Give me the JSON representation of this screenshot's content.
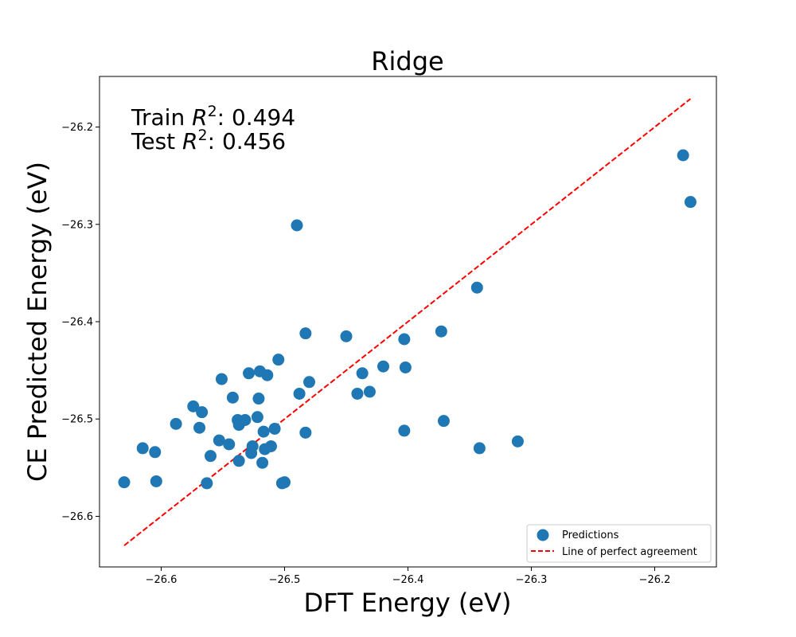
{
  "chart_data": {
    "type": "scatter",
    "title": "Ridge",
    "xlabel": "DFT Energy (eV)",
    "ylabel": "CE Predicted Energy (eV)",
    "xlim": [
      -26.65,
      -26.15
    ],
    "ylim": [
      -26.652,
      -26.148
    ],
    "xticks": [
      -26.6,
      -26.5,
      -26.4,
      -26.3,
      -26.2
    ],
    "xtick_labels": [
      "−26.6",
      "−26.5",
      "−26.4",
      "−26.3",
      "−26.2"
    ],
    "yticks": [
      -26.6,
      -26.5,
      -26.4,
      -26.3,
      -26.2
    ],
    "ytick_labels": [
      "−26.6",
      "−26.5",
      "−26.4",
      "−26.3",
      "−26.2"
    ],
    "grid": false,
    "legend_position": "lower-right",
    "annotations": [
      {
        "prefix": "Train ",
        "var": "R",
        "sup": "2",
        "value": ": 0.494"
      },
      {
        "prefix": "Test ",
        "var": "R",
        "sup": "2",
        "value": ": 0.456"
      }
    ],
    "series": [
      {
        "name": "Predictions",
        "kind": "scatter",
        "color": "#1f77b4",
        "points": [
          [
            -26.63,
            -26.565
          ],
          [
            -26.615,
            -26.53
          ],
          [
            -26.605,
            -26.534
          ],
          [
            -26.604,
            -26.564
          ],
          [
            -26.588,
            -26.505
          ],
          [
            -26.574,
            -26.487
          ],
          [
            -26.569,
            -26.509
          ],
          [
            -26.567,
            -26.493
          ],
          [
            -26.563,
            -26.566
          ],
          [
            -26.56,
            -26.538
          ],
          [
            -26.553,
            -26.522
          ],
          [
            -26.551,
            -26.459
          ],
          [
            -26.545,
            -26.526
          ],
          [
            -26.542,
            -26.478
          ],
          [
            -26.538,
            -26.501
          ],
          [
            -26.537,
            -26.506
          ],
          [
            -26.537,
            -26.543
          ],
          [
            -26.532,
            -26.501
          ],
          [
            -26.529,
            -26.453
          ],
          [
            -26.527,
            -26.535
          ],
          [
            -26.526,
            -26.528
          ],
          [
            -26.522,
            -26.498
          ],
          [
            -26.521,
            -26.479
          ],
          [
            -26.52,
            -26.451
          ],
          [
            -26.518,
            -26.545
          ],
          [
            -26.517,
            -26.513
          ],
          [
            -26.516,
            -26.531
          ],
          [
            -26.514,
            -26.455
          ],
          [
            -26.511,
            -26.528
          ],
          [
            -26.508,
            -26.51
          ],
          [
            -26.505,
            -26.439
          ],
          [
            -26.502,
            -26.566
          ],
          [
            -26.5,
            -26.565
          ],
          [
            -26.49,
            -26.301
          ],
          [
            -26.488,
            -26.474
          ],
          [
            -26.483,
            -26.412
          ],
          [
            -26.483,
            -26.514
          ],
          [
            -26.48,
            -26.462
          ],
          [
            -26.45,
            -26.415
          ],
          [
            -26.441,
            -26.474
          ],
          [
            -26.437,
            -26.453
          ],
          [
            -26.431,
            -26.472
          ],
          [
            -26.42,
            -26.446
          ],
          [
            -26.403,
            -26.418
          ],
          [
            -26.402,
            -26.447
          ],
          [
            -26.403,
            -26.512
          ],
          [
            -26.373,
            -26.41
          ],
          [
            -26.371,
            -26.502
          ],
          [
            -26.344,
            -26.365
          ],
          [
            -26.342,
            -26.53
          ],
          [
            -26.311,
            -26.523
          ],
          [
            -26.177,
            -26.229
          ],
          [
            -26.171,
            -26.277
          ]
        ]
      },
      {
        "name": "Line of perfect agreement",
        "kind": "line",
        "color": "#ff0000",
        "points": [
          [
            -26.63,
            -26.63
          ],
          [
            -26.171,
            -26.171
          ]
        ]
      }
    ]
  }
}
